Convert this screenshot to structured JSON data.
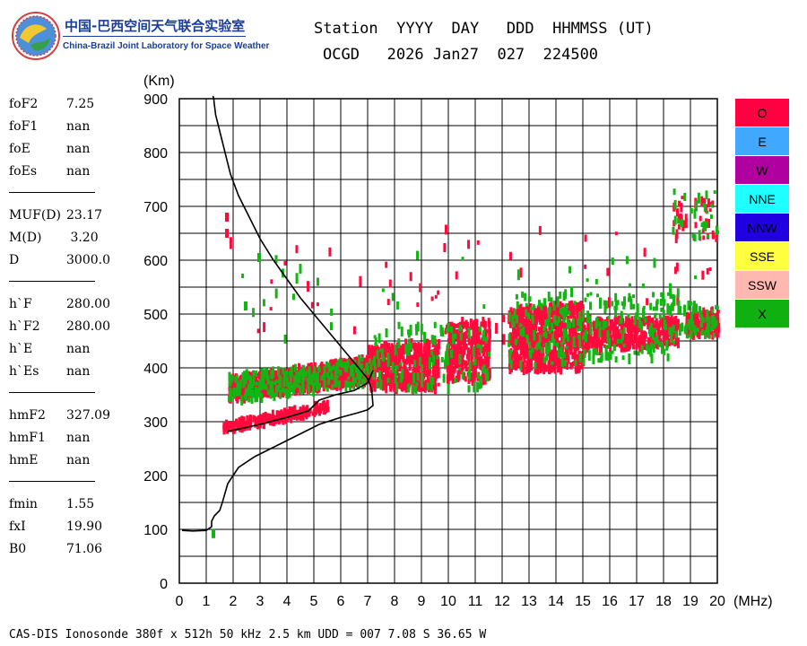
{
  "logo": {
    "title_cn": "中国-巴西空间天气联合实验室",
    "title_en": "China-Brazil Joint Laboratory for Space Weather"
  },
  "header": {
    "line1": "Station  YYYY  DAY   DDD  HHMMSS (UT)",
    "line2": "OCGD   2026 Jan27  027  224500"
  },
  "params": [
    {
      "name": "foF2",
      "value": "7.25"
    },
    {
      "name": "foF1",
      "value": "nan"
    },
    {
      "name": "foE",
      "value": "nan"
    },
    {
      "name": "foEs",
      "value": "nan"
    },
    {
      "sep": true
    },
    {
      "name": "MUF(D)",
      "value": "23.17"
    },
    {
      "name": "M(D)",
      "value": " 3.20"
    },
    {
      "name": "D",
      "value": "3000.0"
    },
    {
      "sep": true
    },
    {
      "name": "h`F",
      "value": "280.00"
    },
    {
      "name": "h`F2",
      "value": "280.00"
    },
    {
      "name": "h`E",
      "value": "nan"
    },
    {
      "name": "h`Es",
      "value": "nan"
    },
    {
      "sep": true
    },
    {
      "name": "hmF2",
      "value": "327.09"
    },
    {
      "name": "hmF1",
      "value": "nan"
    },
    {
      "name": "hmE",
      "value": "nan"
    },
    {
      "sep": true
    },
    {
      "name": "fmin",
      "value": "1.55"
    },
    {
      "name": "fxI",
      "value": "19.90"
    },
    {
      "name": "B0",
      "value": "71.06"
    }
  ],
  "legend": [
    {
      "label": "O",
      "color": "#ff0040"
    },
    {
      "label": "E",
      "color": "#40a8ff"
    },
    {
      "label": "W",
      "color": "#b000a0"
    },
    {
      "label": "NNE",
      "color": "#20ffff"
    },
    {
      "label": "NNW",
      "color": "#2000e0"
    },
    {
      "label": "SSE",
      "color": "#ffff40"
    },
    {
      "label": "SSW",
      "color": "#ffb8b0"
    },
    {
      "label": "X",
      "color": "#10b010"
    }
  ],
  "footer": "CAS-DIS Ionosonde 380f x 512h 50 kHz 2.5 km UDD = 007 7.08 S 36.65 W",
  "chart_data": {
    "type": "scatter",
    "xlabel": "(MHz)",
    "ylabel": "(Km)",
    "xlim": [
      0,
      20
    ],
    "ylim": [
      0,
      900
    ],
    "xticks": [
      "0",
      "1",
      "2",
      "3",
      "4",
      "5",
      "6",
      "7",
      "8",
      "9",
      "10",
      "11",
      "12",
      "13",
      "14",
      "15",
      "16",
      "17",
      "18",
      "19",
      "20"
    ],
    "yticks": [
      "0",
      "100",
      "200",
      "300",
      "400",
      "500",
      "600",
      "700",
      "800",
      "900"
    ],
    "grid": true,
    "profile_curve": {
      "name": "",
      "color": "#000000",
      "x": [
        0.1,
        0.5,
        1.0,
        1.2,
        1.2,
        1.3,
        1.5,
        1.6,
        1.8,
        2.2,
        2.8,
        3.6,
        4.4,
        5.2,
        6.0,
        6.6,
        7.0,
        7.2,
        7.15,
        7.0,
        6.5,
        6.0,
        5.5,
        5.0,
        4.5,
        4.0,
        3.5,
        3.0,
        2.6,
        2.2,
        1.9,
        1.7,
        1.5,
        1.35,
        1.3,
        1.28,
        1.25
      ],
      "y": [
        98,
        97,
        98,
        105,
        115,
        125,
        135,
        150,
        185,
        215,
        235,
        255,
        275,
        295,
        308,
        316,
        322,
        330,
        360,
        380,
        410,
        440,
        470,
        500,
        530,
        565,
        600,
        640,
        680,
        720,
        760,
        800,
        840,
        870,
        890,
        900,
        905
      ]
    },
    "trace_line": {
      "name": "",
      "color": "#000000",
      "x": [
        1.8,
        3.0,
        4.0,
        4.8,
        5.2,
        5.8,
        6.5,
        7.0,
        7.2
      ],
      "y": [
        282,
        295,
        308,
        320,
        340,
        350,
        358,
        372,
        395
      ]
    },
    "clusters": [
      {
        "color": "#ff0a3c",
        "x_range": [
          1.8,
          7.2
        ],
        "y_start": [
          340,
          380
        ],
        "y_end": [
          375,
          420
        ],
        "count": 900
      },
      {
        "color": "#ff0a3c",
        "x_range": [
          1.6,
          5.5
        ],
        "y_start": [
          280,
          295
        ],
        "y_end": [
          320,
          335
        ],
        "count": 220
      },
      {
        "color": "#ff0a3c",
        "x_range": [
          7.0,
          9.6
        ],
        "y_start": [
          360,
          440
        ],
        "y_end": [
          360,
          450
        ],
        "count": 450
      },
      {
        "color": "#ff0a3c",
        "x_range": [
          9.9,
          11.5
        ],
        "y_start": [
          375,
          480
        ],
        "y_end": [
          375,
          490
        ],
        "count": 300
      },
      {
        "color": "#ff0a3c",
        "x_range": [
          12.2,
          15.0
        ],
        "y_start": [
          395,
          510
        ],
        "y_end": [
          395,
          520
        ],
        "count": 650
      },
      {
        "color": "#ff0a3c",
        "x_range": [
          15.0,
          18.5
        ],
        "y_start": [
          430,
          490
        ],
        "y_end": [
          445,
          490
        ],
        "count": 380
      },
      {
        "color": "#ff0a3c",
        "x_range": [
          18.8,
          20.0
        ],
        "y_start": [
          460,
          500
        ],
        "y_end": [
          460,
          510
        ],
        "count": 120
      },
      {
        "color": "#ff0a3c",
        "x_range": [
          18.3,
          20.0
        ],
        "y_start": [
          640,
          720
        ],
        "y_end": [
          640,
          720
        ],
        "count": 40
      },
      {
        "color": "#ff0a3c",
        "x_range": [
          1.6,
          20.0
        ],
        "y_start": [
          440,
          660
        ],
        "y_end": [
          440,
          660
        ],
        "count": 60
      },
      {
        "color": "#14b414",
        "x_range": [
          1.8,
          7.2
        ],
        "y_start": [
          335,
          385
        ],
        "y_end": [
          370,
          420
        ],
        "count": 260
      },
      {
        "color": "#14b414",
        "x_range": [
          7.2,
          11.5
        ],
        "y_start": [
          360,
          480
        ],
        "y_end": [
          360,
          480
        ],
        "count": 120
      },
      {
        "color": "#14b414",
        "x_range": [
          12.2,
          18.5
        ],
        "y_start": [
          400,
          540
        ],
        "y_end": [
          420,
          540
        ],
        "count": 260
      },
      {
        "color": "#14b414",
        "x_range": [
          18.5,
          20.0
        ],
        "y_start": [
          460,
          520
        ],
        "y_end": [
          460,
          520
        ],
        "count": 60
      },
      {
        "color": "#14b414",
        "x_range": [
          18.3,
          20.0
        ],
        "y_start": [
          640,
          730
        ],
        "y_end": [
          640,
          730
        ],
        "count": 30
      },
      {
        "color": "#14b414",
        "x_range": [
          1.6,
          20.0
        ],
        "y_start": [
          450,
          620
        ],
        "y_end": [
          450,
          620
        ],
        "count": 40
      }
    ],
    "isolated_points": [
      {
        "color": "#ff0a3c",
        "x": 1.7,
        "y": 680
      },
      {
        "color": "#ff0a3c",
        "x": 1.7,
        "y": 650
      },
      {
        "color": "#14b414",
        "x": 1.2,
        "y": 92
      },
      {
        "color": "#14b414",
        "x": 2.4,
        "y": 515
      },
      {
        "color": "#14b414",
        "x": 2.9,
        "y": 605
      }
    ]
  }
}
